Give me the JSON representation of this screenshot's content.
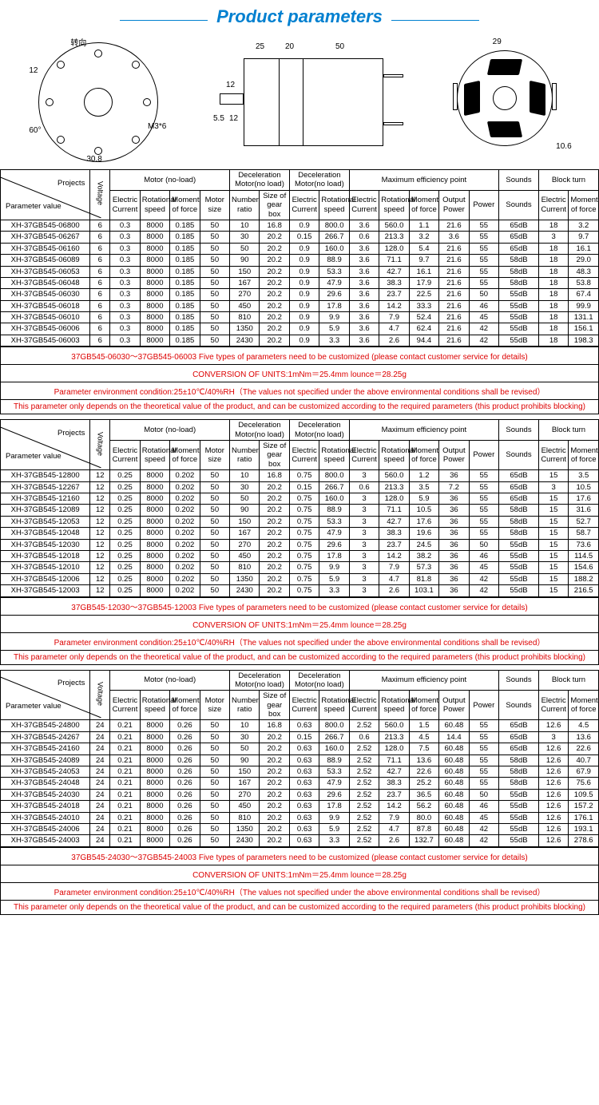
{
  "title": "Product parameters",
  "diagram": {
    "arrow_label": "转向",
    "d1": "12",
    "d2": "60°",
    "d3": "M3*6",
    "d4": "30.8",
    "d5": "25",
    "d6": "20",
    "d7": "50",
    "d8": "12",
    "d9": "5.5",
    "d10": "12",
    "d11": "29",
    "d12": "10.6"
  },
  "headers": {
    "projects": "Projects",
    "param_value": "Parameter value",
    "voltage": "Voltage",
    "motor_noload": "Motor (no-load)",
    "decel_noload": "Deceleration Motor(no load)",
    "max_eff": "Maximum efficiency point",
    "sounds": "Sounds",
    "block_turn": "Block turn",
    "ec": "Electric Current",
    "rs": "Rotational speed",
    "mf": "Moment of force",
    "ms": "Motor size",
    "nr": "Number ratio",
    "sgb": "Size of gear box",
    "op": "Output Power",
    "pw": "Power"
  },
  "notes": {
    "n1a": "37GB545-06030～37GB545-06003 Five types of parameters need to be customized (please contact customer service for details)",
    "n1b": "37GB545-12030～37GB545-12003 Five types of parameters need to be customized (please contact customer service for details)",
    "n1c": "37GB545-24030～37GB545-24003 Five types of parameters need to be customized (please contact customer service for details)",
    "n2": "CONVERSION OF UNITS:1mNm＝25.4mm lounce＝28.25g",
    "n3": "Parameter environment condition:25±10℃/40%RH（The values not specified under the above environmental conditions shall be revised）",
    "n4": "This parameter only depends on the theoretical value of the product, and can be customized according to the required parameters (this product prohibits blocking)"
  },
  "tables": [
    {
      "rows": [
        [
          "XH-37GB545-06800",
          "6",
          "0.3",
          "8000",
          "0.185",
          "50",
          "10",
          "16.8",
          "0.9",
          "800.0",
          "3.6",
          "560.0",
          "1.1",
          "21.6",
          "55",
          "65dB",
          "18",
          "3.2"
        ],
        [
          "XH-37GB545-06267",
          "6",
          "0.3",
          "8000",
          "0.185",
          "50",
          "30",
          "20.2",
          "0.15",
          "266.7",
          "0.6",
          "213.3",
          "3.2",
          "3.6",
          "55",
          "65dB",
          "3",
          "9.7"
        ],
        [
          "XH-37GB545-06160",
          "6",
          "0.3",
          "8000",
          "0.185",
          "50",
          "50",
          "20.2",
          "0.9",
          "160.0",
          "3.6",
          "128.0",
          "5.4",
          "21.6",
          "55",
          "65dB",
          "18",
          "16.1"
        ],
        [
          "XH-37GB545-06089",
          "6",
          "0.3",
          "8000",
          "0.185",
          "50",
          "90",
          "20.2",
          "0.9",
          "88.9",
          "3.6",
          "71.1",
          "9.7",
          "21.6",
          "55",
          "58dB",
          "18",
          "29.0"
        ],
        [
          "XH-37GB545-06053",
          "6",
          "0.3",
          "8000",
          "0.185",
          "50",
          "150",
          "20.2",
          "0.9",
          "53.3",
          "3.6",
          "42.7",
          "16.1",
          "21.6",
          "55",
          "58dB",
          "18",
          "48.3"
        ],
        [
          "XH-37GB545-06048",
          "6",
          "0.3",
          "8000",
          "0.185",
          "50",
          "167",
          "20.2",
          "0.9",
          "47.9",
          "3.6",
          "38.3",
          "17.9",
          "21.6",
          "55",
          "58dB",
          "18",
          "53.8"
        ],
        [
          "XH-37GB545-06030",
          "6",
          "0.3",
          "8000",
          "0.185",
          "50",
          "270",
          "20.2",
          "0.9",
          "29.6",
          "3.6",
          "23.7",
          "22.5",
          "21.6",
          "50",
          "55dB",
          "18",
          "67.4"
        ],
        [
          "XH-37GB545-06018",
          "6",
          "0.3",
          "8000",
          "0.185",
          "50",
          "450",
          "20.2",
          "0.9",
          "17.8",
          "3.6",
          "14.2",
          "33.3",
          "21.6",
          "46",
          "55dB",
          "18",
          "99.9"
        ],
        [
          "XH-37GB545-06010",
          "6",
          "0.3",
          "8000",
          "0.185",
          "50",
          "810",
          "20.2",
          "0.9",
          "9.9",
          "3.6",
          "7.9",
          "52.4",
          "21.6",
          "45",
          "55dB",
          "18",
          "131.1"
        ],
        [
          "XH-37GB545-06006",
          "6",
          "0.3",
          "8000",
          "0.185",
          "50",
          "1350",
          "20.2",
          "0.9",
          "5.9",
          "3.6",
          "4.7",
          "62.4",
          "21.6",
          "42",
          "55dB",
          "18",
          "156.1"
        ],
        [
          "XH-37GB545-06003",
          "6",
          "0.3",
          "8000",
          "0.185",
          "50",
          "2430",
          "20.2",
          "0.9",
          "3.3",
          "3.6",
          "2.6",
          "94.4",
          "21.6",
          "42",
          "55dB",
          "18",
          "198.3"
        ]
      ],
      "note1": "n1a"
    },
    {
      "rows": [
        [
          "XH-37GB545-12800",
          "12",
          "0.25",
          "8000",
          "0.202",
          "50",
          "10",
          "16.8",
          "0.75",
          "800.0",
          "3",
          "560.0",
          "1.2",
          "36",
          "55",
          "65dB",
          "15",
          "3.5"
        ],
        [
          "XH-37GB545-12267",
          "12",
          "0.25",
          "8000",
          "0.202",
          "50",
          "30",
          "20.2",
          "0.15",
          "266.7",
          "0.6",
          "213.3",
          "3.5",
          "7.2",
          "55",
          "65dB",
          "3",
          "10.5"
        ],
        [
          "XH-37GB545-12160",
          "12",
          "0.25",
          "8000",
          "0.202",
          "50",
          "50",
          "20.2",
          "0.75",
          "160.0",
          "3",
          "128.0",
          "5.9",
          "36",
          "55",
          "65dB",
          "15",
          "17.6"
        ],
        [
          "XH-37GB545-12089",
          "12",
          "0.25",
          "8000",
          "0.202",
          "50",
          "90",
          "20.2",
          "0.75",
          "88.9",
          "3",
          "71.1",
          "10.5",
          "36",
          "55",
          "58dB",
          "15",
          "31.6"
        ],
        [
          "XH-37GB545-12053",
          "12",
          "0.25",
          "8000",
          "0.202",
          "50",
          "150",
          "20.2",
          "0.75",
          "53.3",
          "3",
          "42.7",
          "17.6",
          "36",
          "55",
          "58dB",
          "15",
          "52.7"
        ],
        [
          "XH-37GB545-12048",
          "12",
          "0.25",
          "8000",
          "0.202",
          "50",
          "167",
          "20.2",
          "0.75",
          "47.9",
          "3",
          "38.3",
          "19.6",
          "36",
          "55",
          "58dB",
          "15",
          "58.7"
        ],
        [
          "XH-37GB545-12030",
          "12",
          "0.25",
          "8000",
          "0.202",
          "50",
          "270",
          "20.2",
          "0.75",
          "29.6",
          "3",
          "23.7",
          "24.5",
          "36",
          "50",
          "55dB",
          "15",
          "73.6"
        ],
        [
          "XH-37GB545-12018",
          "12",
          "0.25",
          "8000",
          "0.202",
          "50",
          "450",
          "20.2",
          "0.75",
          "17.8",
          "3",
          "14.2",
          "38.2",
          "36",
          "46",
          "55dB",
          "15",
          "114.5"
        ],
        [
          "XH-37GB545-12010",
          "12",
          "0.25",
          "8000",
          "0.202",
          "50",
          "810",
          "20.2",
          "0.75",
          "9.9",
          "3",
          "7.9",
          "57.3",
          "36",
          "45",
          "55dB",
          "15",
          "154.6"
        ],
        [
          "XH-37GB545-12006",
          "12",
          "0.25",
          "8000",
          "0.202",
          "50",
          "1350",
          "20.2",
          "0.75",
          "5.9",
          "3",
          "4.7",
          "81.8",
          "36",
          "42",
          "55dB",
          "15",
          "188.2"
        ],
        [
          "XH-37GB545-12003",
          "12",
          "0.25",
          "8000",
          "0.202",
          "50",
          "2430",
          "20.2",
          "0.75",
          "3.3",
          "3",
          "2.6",
          "103.1",
          "36",
          "42",
          "55dB",
          "15",
          "216.5"
        ]
      ],
      "note1": "n1b"
    },
    {
      "rows": [
        [
          "XH-37GB545-24800",
          "24",
          "0.21",
          "8000",
          "0.26",
          "50",
          "10",
          "16.8",
          "0.63",
          "800.0",
          "2.52",
          "560.0",
          "1.5",
          "60.48",
          "55",
          "65dB",
          "12.6",
          "4.5"
        ],
        [
          "XH-37GB545-24267",
          "24",
          "0.21",
          "8000",
          "0.26",
          "50",
          "30",
          "20.2",
          "0.15",
          "266.7",
          "0.6",
          "213.3",
          "4.5",
          "14.4",
          "55",
          "65dB",
          "3",
          "13.6"
        ],
        [
          "XH-37GB545-24160",
          "24",
          "0.21",
          "8000",
          "0.26",
          "50",
          "50",
          "20.2",
          "0.63",
          "160.0",
          "2.52",
          "128.0",
          "7.5",
          "60.48",
          "55",
          "65dB",
          "12.6",
          "22.6"
        ],
        [
          "XH-37GB545-24089",
          "24",
          "0.21",
          "8000",
          "0.26",
          "50",
          "90",
          "20.2",
          "0.63",
          "88.9",
          "2.52",
          "71.1",
          "13.6",
          "60.48",
          "55",
          "58dB",
          "12.6",
          "40.7"
        ],
        [
          "XH-37GB545-24053",
          "24",
          "0.21",
          "8000",
          "0.26",
          "50",
          "150",
          "20.2",
          "0.63",
          "53.3",
          "2.52",
          "42.7",
          "22.6",
          "60.48",
          "55",
          "58dB",
          "12.6",
          "67.9"
        ],
        [
          "XH-37GB545-24048",
          "24",
          "0.21",
          "8000",
          "0.26",
          "50",
          "167",
          "20.2",
          "0.63",
          "47.9",
          "2.52",
          "38.3",
          "25.2",
          "60.48",
          "55",
          "58dB",
          "12.6",
          "75.6"
        ],
        [
          "XH-37GB545-24030",
          "24",
          "0.21",
          "8000",
          "0.26",
          "50",
          "270",
          "20.2",
          "0.63",
          "29.6",
          "2.52",
          "23.7",
          "36.5",
          "60.48",
          "50",
          "55dB",
          "12.6",
          "109.5"
        ],
        [
          "XH-37GB545-24018",
          "24",
          "0.21",
          "8000",
          "0.26",
          "50",
          "450",
          "20.2",
          "0.63",
          "17.8",
          "2.52",
          "14.2",
          "56.2",
          "60.48",
          "46",
          "55dB",
          "12.6",
          "157.2"
        ],
        [
          "XH-37GB545-24010",
          "24",
          "0.21",
          "8000",
          "0.26",
          "50",
          "810",
          "20.2",
          "0.63",
          "9.9",
          "2.52",
          "7.9",
          "80.0",
          "60.48",
          "45",
          "55dB",
          "12.6",
          "176.1"
        ],
        [
          "XH-37GB545-24006",
          "24",
          "0.21",
          "8000",
          "0.26",
          "50",
          "1350",
          "20.2",
          "0.63",
          "5.9",
          "2.52",
          "4.7",
          "87.8",
          "60.48",
          "42",
          "55dB",
          "12.6",
          "193.1"
        ],
        [
          "XH-37GB545-24003",
          "24",
          "0.21",
          "8000",
          "0.26",
          "50",
          "2430",
          "20.2",
          "0.63",
          "3.3",
          "2.52",
          "2.6",
          "132.7",
          "60.48",
          "42",
          "55dB",
          "12.6",
          "278.6"
        ]
      ],
      "note1": "n1c"
    }
  ]
}
